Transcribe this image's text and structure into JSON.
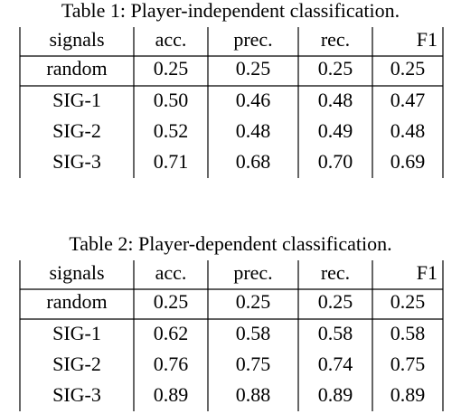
{
  "tables": [
    {
      "caption": "Table 1: Player-independent classification.",
      "header": [
        "signals",
        "acc.",
        "prec.",
        "rec.",
        "F1"
      ],
      "rows": [
        [
          "random",
          "0.25",
          "0.25",
          "0.25",
          "0.25"
        ],
        [
          "SIG-1",
          "0.50",
          "0.46",
          "0.48",
          "0.47"
        ],
        [
          "SIG-2",
          "0.52",
          "0.48",
          "0.49",
          "0.48"
        ],
        [
          "SIG-3",
          "0.71",
          "0.68",
          "0.70",
          "0.69"
        ]
      ]
    },
    {
      "caption": "Table 2: Player-dependent classification.",
      "header": [
        "signals",
        "acc.",
        "prec.",
        "rec.",
        "F1"
      ],
      "rows": [
        [
          "random",
          "0.25",
          "0.25",
          "0.25",
          "0.25"
        ],
        [
          "SIG-1",
          "0.62",
          "0.58",
          "0.58",
          "0.58"
        ],
        [
          "SIG-2",
          "0.76",
          "0.75",
          "0.74",
          "0.75"
        ],
        [
          "SIG-3",
          "0.89",
          "0.88",
          "0.89",
          "0.89"
        ]
      ]
    }
  ]
}
